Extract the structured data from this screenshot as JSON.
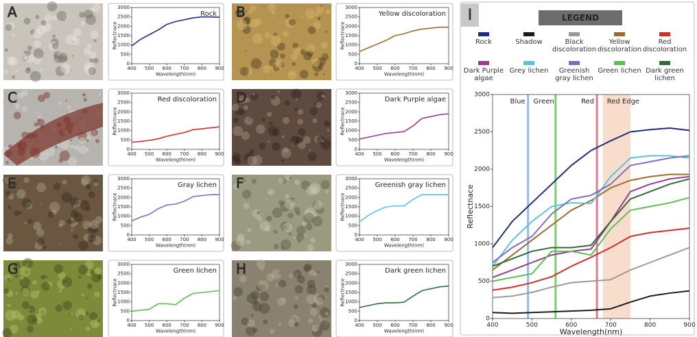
{
  "chart_data": [
    {
      "type": "line",
      "panel": "A",
      "title": "Rock",
      "xlabel": "Wavelength(nm)",
      "ylabel": "Reflectnace",
      "xlim": [
        400,
        900
      ],
      "xticks": [
        400,
        500,
        600,
        700,
        800,
        900
      ],
      "ylim": [
        0,
        3000
      ],
      "yticks": [
        0,
        500,
        1000,
        1500,
        2000,
        2500,
        3000
      ],
      "x": [
        400,
        450,
        500,
        550,
        600,
        650,
        700,
        750,
        800,
        850,
        900
      ],
      "color": "#1f2a80",
      "values": [
        950,
        1300,
        1550,
        1800,
        2100,
        2250,
        2350,
        2450,
        2500,
        2500,
        2480
      ]
    },
    {
      "type": "line",
      "panel": "B",
      "title": "Yellow discoloration",
      "xlabel": "Wavelength(nm)",
      "ylabel": "Reflectnace",
      "xlim": [
        400,
        900
      ],
      "xticks": [
        400,
        500,
        600,
        700,
        800,
        900
      ],
      "ylim": [
        0,
        3000
      ],
      "yticks": [
        0,
        500,
        1000,
        1500,
        2000,
        2500,
        3000
      ],
      "x": [
        400,
        450,
        500,
        550,
        600,
        650,
        700,
        750,
        800,
        850,
        900
      ],
      "color": "#9b6a2e",
      "values": [
        650,
        850,
        1050,
        1250,
        1500,
        1600,
        1750,
        1850,
        1900,
        1950,
        1950
      ]
    },
    {
      "type": "line",
      "panel": "C",
      "title": "Red discoloration",
      "xlabel": "Wavelength(nm)",
      "ylabel": "Reflectnace",
      "xlim": [
        400,
        900
      ],
      "xticks": [
        400,
        500,
        600,
        700,
        800,
        900
      ],
      "ylim": [
        0,
        3000
      ],
      "yticks": [
        0,
        500,
        1000,
        1500,
        2000,
        2500,
        3000
      ],
      "x": [
        400,
        450,
        500,
        550,
        600,
        650,
        700,
        750,
        800,
        850,
        900
      ],
      "color": "#d62b2b",
      "values": [
        380,
        420,
        480,
        560,
        700,
        800,
        900,
        1050,
        1100,
        1150,
        1200
      ]
    },
    {
      "type": "line",
      "panel": "D",
      "title": "Dark Purple algae",
      "xlabel": "Wavelength(nm)",
      "ylabel": "Reflectnace",
      "xlim": [
        400,
        900
      ],
      "xticks": [
        400,
        500,
        600,
        700,
        800,
        900
      ],
      "ylim": [
        0,
        3000
      ],
      "yticks": [
        0,
        500,
        1000,
        1500,
        2000,
        2500,
        3000
      ],
      "x": [
        400,
        450,
        500,
        550,
        600,
        650,
        700,
        750,
        800,
        850,
        900
      ],
      "color": "#9b3a8f",
      "values": [
        550,
        650,
        750,
        850,
        900,
        950,
        1250,
        1650,
        1750,
        1850,
        1900
      ]
    },
    {
      "type": "line",
      "panel": "E",
      "title": "Gray lichen",
      "xlabel": "Wavelength(nm)",
      "ylabel": "Reflectnace",
      "xlim": [
        400,
        900
      ],
      "xticks": [
        400,
        500,
        600,
        700,
        800,
        900
      ],
      "ylim": [
        0,
        3000
      ],
      "yticks": [
        0,
        500,
        1000,
        1500,
        2000,
        2500,
        3000
      ],
      "x": [
        400,
        450,
        500,
        550,
        600,
        650,
        700,
        750,
        800,
        850,
        900
      ],
      "color": "#7a6fc0",
      "values": [
        750,
        950,
        1100,
        1400,
        1600,
        1650,
        1800,
        2050,
        2100,
        2150,
        2150
      ]
    },
    {
      "type": "line",
      "panel": "F",
      "title": "Greenish gray lichen",
      "xlabel": "Wavelength(nm)",
      "ylabel": "Reflectnace",
      "xlim": [
        400,
        900
      ],
      "xticks": [
        400,
        500,
        600,
        700,
        800,
        900
      ],
      "ylim": [
        0,
        3000
      ],
      "yticks": [
        0,
        500,
        1000,
        1500,
        2000,
        2500,
        3000
      ],
      "x": [
        400,
        450,
        500,
        550,
        600,
        650,
        700,
        750,
        800,
        850,
        900
      ],
      "color": "#5bc4d6",
      "values": [
        700,
        1050,
        1300,
        1500,
        1550,
        1550,
        1900,
        2150,
        2150,
        2150,
        2150
      ]
    },
    {
      "type": "line",
      "panel": "G",
      "title": "Green lichen",
      "xlabel": "Wavelength(nm)",
      "ylabel": "Reflectnace",
      "xlim": [
        400,
        900
      ],
      "xticks": [
        400,
        500,
        600,
        700,
        800,
        900
      ],
      "ylim": [
        0,
        3000
      ],
      "yticks": [
        0,
        500,
        1000,
        1500,
        2000,
        2500,
        3000
      ],
      "x": [
        400,
        450,
        500,
        550,
        600,
        650,
        700,
        750,
        800,
        850,
        900
      ],
      "color": "#5ac04f",
      "values": [
        500,
        550,
        600,
        900,
        900,
        850,
        1200,
        1450,
        1500,
        1550,
        1600
      ]
    },
    {
      "type": "line",
      "panel": "H",
      "title": "Dark green lichen",
      "xlabel": "Wavelength(nm)",
      "ylabel": "Reflectnace",
      "xlim": [
        400,
        900
      ],
      "xticks": [
        400,
        500,
        600,
        700,
        800,
        900
      ],
      "ylim": [
        0,
        3000
      ],
      "yticks": [
        0,
        500,
        1000,
        1500,
        2000,
        2500,
        3000
      ],
      "x": [
        400,
        450,
        500,
        550,
        600,
        650,
        700,
        750,
        800,
        850,
        900
      ],
      "color": "#2e6b3a",
      "values": [
        700,
        800,
        900,
        950,
        950,
        980,
        1300,
        1600,
        1700,
        1800,
        1850
      ]
    },
    {
      "type": "line",
      "panel": "I",
      "legend_title": "LEGEND",
      "xlabel": "Wavelength(nm)",
      "ylabel": "Reflectnace",
      "xlim": [
        400,
        900
      ],
      "xticks": [
        400,
        500,
        600,
        700,
        800,
        900
      ],
      "ylim": [
        0,
        3000
      ],
      "yticks": [
        0,
        500,
        1000,
        1500,
        2000,
        2500,
        3000
      ],
      "x": [
        400,
        450,
        500,
        550,
        600,
        650,
        700,
        750,
        800,
        850,
        900
      ],
      "annotations": [
        {
          "text": "Blue",
          "x": 490,
          "color": "#7fa7d9"
        },
        {
          "text": "Green",
          "x": 560,
          "color": "#5ac04f"
        },
        {
          "text": "Red",
          "x": 665,
          "color": "#e0566a"
        }
      ],
      "band": {
        "text": "Red Edge",
        "x0": 680,
        "x1": 750,
        "color": "#f6d5bf"
      },
      "series": [
        {
          "name": "Rock",
          "color": "#1f2a80",
          "values": [
            950,
            1300,
            1550,
            1800,
            2050,
            2250,
            2380,
            2500,
            2530,
            2550,
            2520
          ]
        },
        {
          "name": "Shadow",
          "color": "#1a1a1a",
          "values": [
            80,
            70,
            80,
            90,
            100,
            110,
            130,
            220,
            300,
            340,
            370
          ]
        },
        {
          "name": "Black discoloration",
          "color": "#9a9a9a",
          "values": [
            280,
            300,
            350,
            420,
            480,
            500,
            520,
            650,
            750,
            850,
            950
          ]
        },
        {
          "name": "Yellow discoloration",
          "color": "#9b6a2e",
          "values": [
            650,
            850,
            1050,
            1250,
            1450,
            1580,
            1750,
            1850,
            1900,
            1930,
            1930
          ]
        },
        {
          "name": "Red discoloration",
          "color": "#d62b2b",
          "values": [
            380,
            420,
            480,
            560,
            700,
            820,
            950,
            1100,
            1150,
            1180,
            1210
          ]
        },
        {
          "name": "Dark Purple algae",
          "color": "#9b3a8f",
          "values": [
            550,
            650,
            750,
            850,
            900,
            930,
            1300,
            1700,
            1800,
            1870,
            1900
          ]
        },
        {
          "name": "Grey lichen",
          "color": "#5bc4d6",
          "values": [
            700,
            1050,
            1300,
            1500,
            1550,
            1540,
            1900,
            2150,
            2180,
            2180,
            2150
          ]
        },
        {
          "name": "Greenish gray lichen",
          "color": "#7a6fc0",
          "values": [
            750,
            950,
            1100,
            1400,
            1600,
            1650,
            1800,
            2050,
            2100,
            2150,
            2180
          ]
        },
        {
          "name": "Green lichen",
          "color": "#5ac04f",
          "values": [
            500,
            550,
            600,
            900,
            900,
            850,
            1200,
            1450,
            1500,
            1550,
            1620
          ]
        },
        {
          "name": "Dark green lichen",
          "color": "#2e6b3a",
          "values": [
            700,
            800,
            900,
            950,
            950,
            980,
            1300,
            1600,
            1700,
            1800,
            1870
          ]
        }
      ]
    }
  ]
}
